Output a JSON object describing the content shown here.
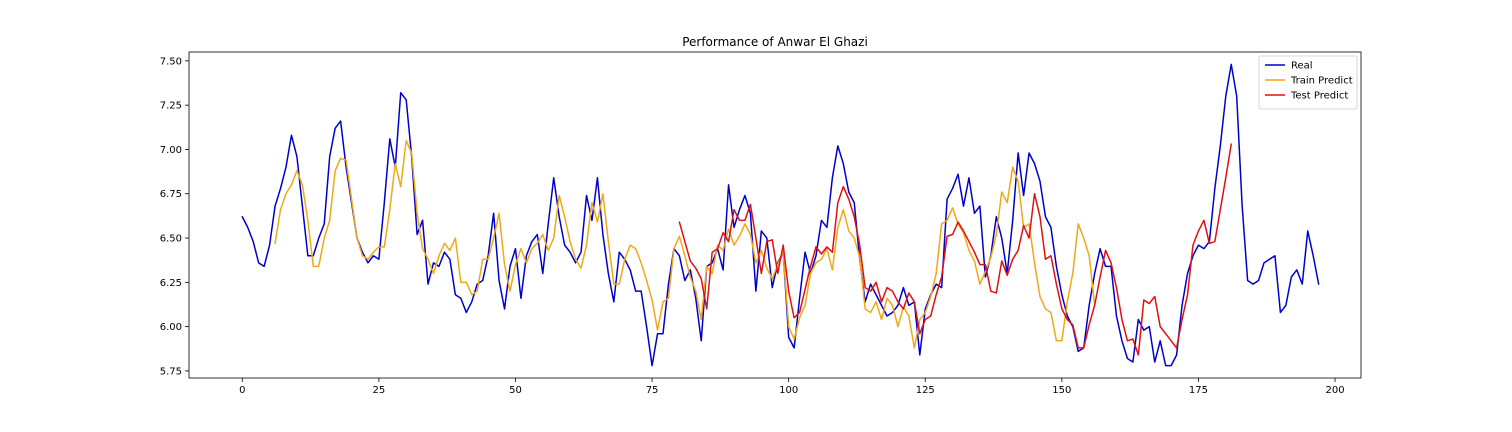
{
  "chart_data": {
    "type": "line",
    "title": "Performance of Anwar El Ghazi",
    "xlabel": "",
    "ylabel": "",
    "xlim": [
      -9.75,
      204.75
    ],
    "ylim": [
      5.71,
      7.55
    ],
    "xticks": [
      0,
      25,
      50,
      75,
      100,
      125,
      150,
      175,
      200
    ],
    "xtick_labels": [
      "0",
      "25",
      "50",
      "75",
      "100",
      "125",
      "150",
      "175",
      "200"
    ],
    "yticks": [
      5.75,
      6.0,
      6.25,
      6.5,
      6.75,
      7.0,
      7.25,
      7.5
    ],
    "ytick_labels": [
      "5.75",
      "6.00",
      "6.25",
      "6.50",
      "6.75",
      "7.00",
      "7.25",
      "7.50"
    ],
    "grid": false,
    "legend_position": "top-right",
    "series": [
      {
        "name": "Real",
        "color": "#0000cc",
        "x_start": 0,
        "values": [
          6.62,
          6.56,
          6.48,
          6.36,
          6.34,
          6.46,
          6.68,
          6.78,
          6.9,
          7.08,
          6.96,
          6.68,
          6.4,
          6.4,
          6.5,
          6.58,
          6.96,
          7.12,
          7.16,
          6.9,
          6.7,
          6.5,
          6.42,
          6.36,
          6.4,
          6.38,
          6.7,
          7.06,
          6.9,
          7.32,
          7.28,
          6.96,
          6.52,
          6.6,
          6.24,
          6.36,
          6.34,
          6.42,
          6.38,
          6.18,
          6.16,
          6.08,
          6.14,
          6.24,
          6.26,
          6.4,
          6.64,
          6.26,
          6.1,
          6.34,
          6.44,
          6.16,
          6.4,
          6.48,
          6.52,
          6.3,
          6.58,
          6.84,
          6.62,
          6.46,
          6.42,
          6.36,
          6.42,
          6.74,
          6.6,
          6.84,
          6.52,
          6.3,
          6.14,
          6.42,
          6.38,
          6.32,
          6.2,
          6.2,
          6.0,
          5.78,
          5.96,
          5.96,
          6.24,
          6.44,
          6.4,
          6.26,
          6.32,
          6.16,
          5.92,
          6.34,
          6.36,
          6.44,
          6.32,
          6.8,
          6.56,
          6.66,
          6.74,
          6.64,
          6.2,
          6.54,
          6.5,
          6.22,
          6.36,
          6.42,
          5.94,
          5.88,
          6.16,
          6.42,
          6.3,
          6.4,
          6.6,
          6.56,
          6.84,
          7.02,
          6.92,
          6.76,
          6.7,
          6.38,
          6.14,
          6.24,
          6.18,
          6.12,
          6.06,
          6.08,
          6.12,
          6.22,
          6.12,
          6.14,
          5.84,
          6.1,
          6.18,
          6.24,
          6.22,
          6.72,
          6.78,
          6.86,
          6.68,
          6.84,
          6.64,
          6.68,
          6.28,
          6.4,
          6.62,
          6.5,
          6.3,
          6.6,
          6.98,
          6.74,
          6.98,
          6.92,
          6.82,
          6.62,
          6.56,
          6.34,
          6.18,
          6.06,
          6.0,
          5.86,
          5.88,
          6.12,
          6.3,
          6.44,
          6.34,
          6.34,
          6.06,
          5.92,
          5.82,
          5.8,
          6.04,
          5.98,
          6.0,
          5.8,
          5.92,
          5.78,
          5.78,
          5.84,
          6.12,
          6.3,
          6.4,
          6.46,
          6.44,
          6.48,
          6.78,
          7.02,
          7.3,
          7.48,
          7.3,
          6.68,
          6.26,
          6.24,
          6.26,
          6.36,
          6.38,
          6.4,
          6.08,
          6.12,
          6.28,
          6.32,
          6.24,
          6.54,
          6.4,
          6.24
        ]
      },
      {
        "name": "Train Predict",
        "color": "#f0a818",
        "x_start": 6,
        "values": [
          6.47,
          6.66,
          6.75,
          6.8,
          6.88,
          6.8,
          6.6,
          6.34,
          6.34,
          6.5,
          6.6,
          6.88,
          6.95,
          6.94,
          6.72,
          6.5,
          6.4,
          6.38,
          6.42,
          6.45,
          6.45,
          6.66,
          6.92,
          6.79,
          7.05,
          6.98,
          6.64,
          6.44,
          6.38,
          6.3,
          6.4,
          6.47,
          6.43,
          6.5,
          6.25,
          6.25,
          6.18,
          6.2,
          6.38,
          6.38,
          6.5,
          6.64,
          6.35,
          6.2,
          6.35,
          6.44,
          6.36,
          6.44,
          6.47,
          6.52,
          6.43,
          6.5,
          6.74,
          6.62,
          6.48,
          6.38,
          6.33,
          6.46,
          6.7,
          6.59,
          6.75,
          6.48,
          6.24,
          6.24,
          6.38,
          6.46,
          6.44,
          6.36,
          6.26,
          6.15,
          5.98,
          6.14,
          6.16,
          6.44,
          6.51,
          6.4,
          6.28,
          6.2,
          6.04,
          6.34,
          6.3,
          6.46,
          6.43,
          6.55,
          6.46,
          6.51,
          6.58,
          6.52,
          6.36,
          6.43,
          6.33,
          6.27,
          6.35,
          6.42,
          6.0,
          5.93,
          6.05,
          6.12,
          6.3,
          6.36,
          6.38,
          6.44,
          6.32,
          6.56,
          6.66,
          6.54,
          6.5,
          6.39,
          6.1,
          6.08,
          6.14,
          6.04,
          6.16,
          6.12,
          6.0,
          6.11,
          6.06,
          5.88,
          6.04,
          6.08,
          6.17,
          6.3,
          6.58,
          6.6,
          6.67,
          6.58,
          6.53,
          6.43,
          6.37,
          6.24,
          6.31,
          6.39,
          6.52,
          6.76,
          6.7,
          6.9,
          6.82,
          6.56,
          6.58,
          6.36,
          6.17,
          6.1,
          6.08,
          5.92,
          5.92,
          6.14,
          6.3,
          6.58,
          6.5,
          6.4,
          6.12
        ]
      },
      {
        "name": "Test Predict",
        "color": "#e01010",
        "x_start": 80,
        "values": [
          6.59,
          6.48,
          6.37,
          6.33,
          6.27,
          6.1,
          6.42,
          6.44,
          6.53,
          6.48,
          6.66,
          6.6,
          6.6,
          6.69,
          6.5,
          6.3,
          6.48,
          6.49,
          6.3,
          6.46,
          6.2,
          6.05,
          6.08,
          6.21,
          6.34,
          6.45,
          6.41,
          6.45,
          6.42,
          6.7,
          6.79,
          6.72,
          6.62,
          6.46,
          6.22,
          6.2,
          6.25,
          6.14,
          6.22,
          6.2,
          6.14,
          6.1,
          6.19,
          6.14,
          5.96,
          6.04,
          6.06,
          6.18,
          6.28,
          6.51,
          6.52,
          6.59,
          6.54,
          6.48,
          6.42,
          6.35,
          6.35,
          6.2,
          6.19,
          6.37,
          6.29,
          6.38,
          6.43,
          6.57,
          6.5,
          6.75,
          6.62,
          6.38,
          6.4,
          6.24,
          6.1,
          6.04,
          6.01,
          5.88,
          5.88,
          6.01,
          6.12,
          6.28,
          6.43,
          6.36,
          6.22,
          6.04,
          5.92,
          5.93,
          5.84,
          6.15,
          6.13,
          6.17,
          6.0,
          5.96,
          5.92,
          5.88,
          6.04,
          6.18,
          6.46,
          6.54,
          6.6,
          6.47,
          6.48,
          6.66,
          6.84,
          7.03
        ]
      }
    ]
  }
}
